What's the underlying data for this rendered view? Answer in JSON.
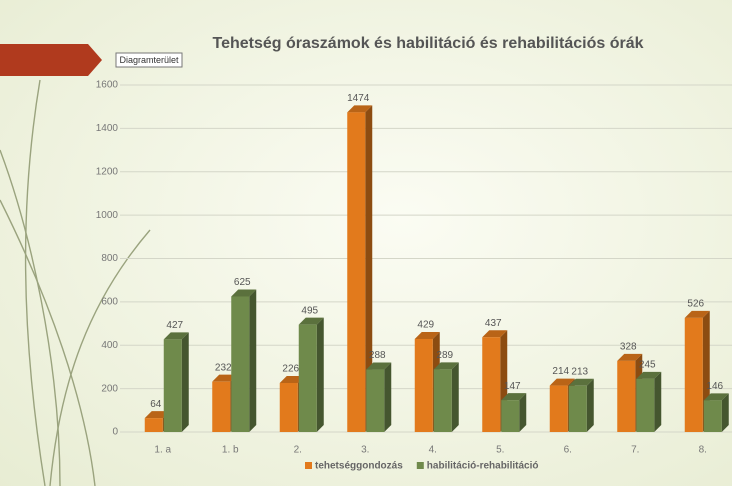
{
  "chart_data": {
    "type": "bar",
    "title": "Tehetség óraszámok és habilitáció és rehabilitációs órák",
    "tooltip": "Diagramterület",
    "categories": [
      "1. a",
      "1. b",
      "2.",
      "3.",
      "4.",
      "5.",
      "6.",
      "7.",
      "8."
    ],
    "series": [
      {
        "name": "tehetséggondozás",
        "color": "#e27a1c",
        "values": [
          64,
          232,
          226,
          1474,
          429,
          437,
          214,
          328,
          526
        ]
      },
      {
        "name": "habilitáció-rehabilitáció",
        "color": "#6f8a4b",
        "values": [
          427,
          625,
          495,
          288,
          289,
          147,
          213,
          245,
          146
        ]
      }
    ],
    "ylim": [
      0,
      1600
    ],
    "yticks": [
      0,
      200,
      400,
      600,
      800,
      1000,
      1200,
      1400,
      1600
    ],
    "grid": true,
    "legend": "bottom"
  }
}
